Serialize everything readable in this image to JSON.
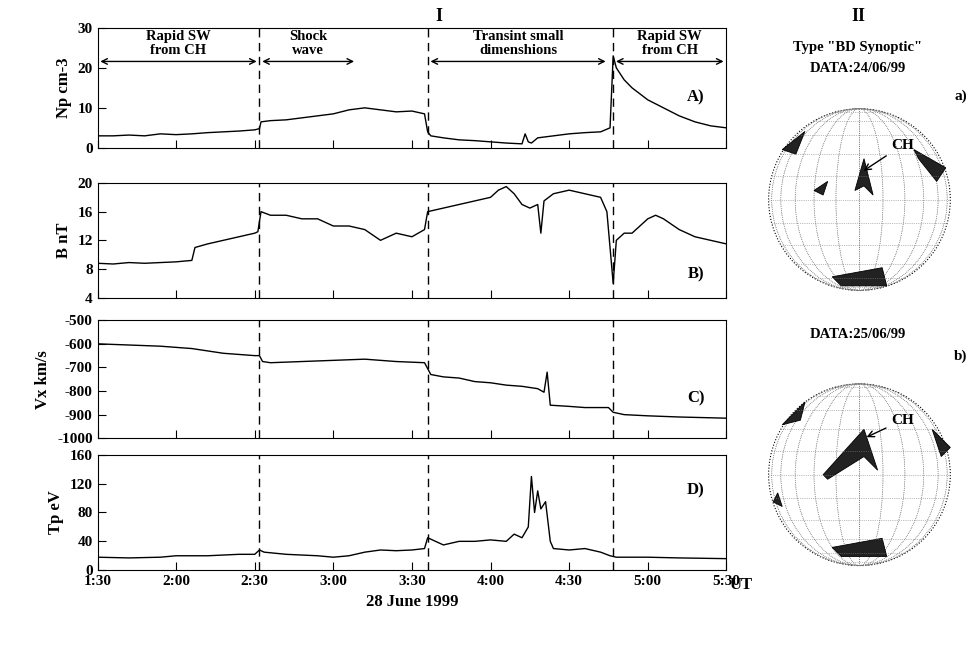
{
  "header": {
    "left": "I",
    "right": "II"
  },
  "boundaries": [
    2.53,
    3.6,
    4.78
  ],
  "chart_data": [
    {
      "type": "line",
      "ylabel": "Np cm-3",
      "panel": "A)",
      "color": "#000000",
      "x": [
        1.5,
        1.6,
        1.7,
        1.8,
        1.9,
        2.0,
        2.1,
        2.2,
        2.3,
        2.4,
        2.5,
        2.53,
        2.54,
        2.6,
        2.7,
        2.8,
        2.9,
        3.0,
        3.1,
        3.2,
        3.3,
        3.4,
        3.5,
        3.58,
        3.6,
        3.62,
        3.7,
        3.8,
        3.9,
        4.0,
        4.1,
        4.2,
        4.22,
        4.24,
        4.26,
        4.3,
        4.4,
        4.5,
        4.6,
        4.7,
        4.76,
        4.78,
        4.8,
        4.85,
        4.9,
        5.0,
        5.1,
        5.2,
        5.3,
        5.4,
        5.5
      ],
      "values": [
        3,
        3,
        3.2,
        3,
        3.5,
        3.3,
        3.5,
        3.8,
        4,
        4.2,
        4.5,
        4.8,
        6.5,
        6.8,
        7,
        7.5,
        8,
        8.5,
        9.5,
        10,
        9.5,
        9,
        9.2,
        8.5,
        4,
        3,
        2.5,
        2,
        1.8,
        1.5,
        1.2,
        1,
        3.5,
        1.5,
        1.2,
        2.5,
        3,
        3.5,
        3.8,
        4,
        5,
        23,
        20,
        17,
        15,
        12,
        10,
        8,
        6.5,
        5.5,
        5
      ],
      "xlim": [
        1.5,
        5.5
      ],
      "xticks": [
        1.5,
        2.0,
        2.5,
        3.0,
        3.5,
        4.0,
        4.5,
        5.0,
        5.5
      ],
      "ylim": [
        0,
        30
      ],
      "yticks": [
        0,
        10,
        20,
        30
      ],
      "tick_labels": "y",
      "annotations": [
        {
          "text": "Rapid SW\nfrom CH",
          "x_start": 1.5,
          "x_end": 2.53
        },
        {
          "text": "Shock\nwave",
          "x_start": 2.53,
          "x_end": 3.15
        },
        {
          "text": "Transint small\ndimenshions",
          "x_start": 3.6,
          "x_end": 4.75
        },
        {
          "text": "Rapid SW\nfrom CH",
          "x_start": 4.78,
          "x_end": 5.5
        }
      ]
    },
    {
      "type": "line",
      "ylabel": "B nT",
      "panel": "B)",
      "color": "#000000",
      "x": [
        1.5,
        1.6,
        1.7,
        1.8,
        1.9,
        2.0,
        2.1,
        2.12,
        2.2,
        2.3,
        2.4,
        2.5,
        2.52,
        2.54,
        2.6,
        2.7,
        2.8,
        2.9,
        3.0,
        3.1,
        3.2,
        3.3,
        3.4,
        3.5,
        3.58,
        3.6,
        3.7,
        3.8,
        3.9,
        4.0,
        4.05,
        4.1,
        4.15,
        4.2,
        4.25,
        4.3,
        4.32,
        4.34,
        4.4,
        4.5,
        4.6,
        4.7,
        4.74,
        4.76,
        4.78,
        4.8,
        4.85,
        4.9,
        5.0,
        5.05,
        5.1,
        5.2,
        5.3,
        5.4,
        5.5
      ],
      "values": [
        8.8,
        8.7,
        8.9,
        8.8,
        8.9,
        9,
        9.2,
        11,
        11.5,
        12,
        12.5,
        13,
        13.2,
        16,
        15.5,
        15.5,
        15,
        15,
        14,
        14,
        13.5,
        12,
        13,
        12.5,
        13.5,
        16,
        16.5,
        17,
        17.5,
        18,
        19,
        19.5,
        18.5,
        17,
        16.5,
        17,
        13,
        17.5,
        18.5,
        19,
        18.5,
        18,
        16,
        11,
        6,
        12,
        13,
        13,
        15,
        15.5,
        15,
        13.5,
        12.5,
        12,
        11.5
      ],
      "xlim": [
        1.5,
        5.5
      ],
      "xticks": [
        1.5,
        2.0,
        2.5,
        3.0,
        3.5,
        4.0,
        4.5,
        5.0,
        5.5
      ],
      "ylim": [
        4,
        20
      ],
      "yticks": [
        4,
        8,
        12,
        16,
        20
      ],
      "tick_labels": "y"
    },
    {
      "type": "line",
      "ylabel": "Vx km/s",
      "panel": "C)",
      "color": "#000000",
      "x": [
        1.5,
        1.7,
        1.9,
        2.0,
        2.1,
        2.2,
        2.3,
        2.4,
        2.5,
        2.53,
        2.55,
        2.6,
        2.8,
        3.0,
        3.2,
        3.4,
        3.58,
        3.62,
        3.7,
        3.8,
        3.9,
        4.0,
        4.1,
        4.2,
        4.3,
        4.34,
        4.36,
        4.38,
        4.5,
        4.6,
        4.7,
        4.75,
        4.78,
        4.85,
        5.0,
        5.2,
        5.5
      ],
      "values": [
        -600,
        -605,
        -610,
        -615,
        -620,
        -630,
        -640,
        -645,
        -650,
        -650,
        -675,
        -680,
        -675,
        -670,
        -665,
        -675,
        -680,
        -730,
        -740,
        -745,
        -760,
        -765,
        -775,
        -780,
        -790,
        -805,
        -720,
        -860,
        -865,
        -870,
        -870,
        -870,
        -890,
        -900,
        -905,
        -910,
        -915
      ],
      "xlim": [
        1.5,
        5.5
      ],
      "xticks": [
        1.5,
        2.0,
        2.5,
        3.0,
        3.5,
        4.0,
        4.5,
        5.0,
        5.5
      ],
      "ylim": [
        -1000,
        -500
      ],
      "yticks": [
        -500,
        -600,
        -700,
        -800,
        -900,
        -1000
      ],
      "tick_labels": "y"
    },
    {
      "type": "line",
      "ylabel": "Tp eV",
      "panel": "D)",
      "color": "#000000",
      "xlabel": "28 June 1999",
      "xunit": "UT",
      "x": [
        1.5,
        1.7,
        1.9,
        2.0,
        2.2,
        2.4,
        2.5,
        2.53,
        2.56,
        2.7,
        2.9,
        3.0,
        3.1,
        3.2,
        3.3,
        3.4,
        3.5,
        3.58,
        3.6,
        3.65,
        3.7,
        3.8,
        3.9,
        4.0,
        4.1,
        4.15,
        4.2,
        4.24,
        4.26,
        4.28,
        4.3,
        4.32,
        4.35,
        4.38,
        4.4,
        4.5,
        4.6,
        4.7,
        4.76,
        4.8,
        5.0,
        5.2,
        5.5
      ],
      "values": [
        18,
        17,
        18,
        20,
        20,
        22,
        22,
        28,
        25,
        22,
        20,
        18,
        20,
        25,
        28,
        27,
        28,
        30,
        45,
        40,
        35,
        40,
        40,
        42,
        40,
        50,
        45,
        60,
        130,
        80,
        110,
        85,
        95,
        40,
        30,
        28,
        30,
        25,
        20,
        18,
        18,
        17,
        16
      ],
      "xlim": [
        1.5,
        5.5
      ],
      "xticks": [
        {
          "value": 1.5,
          "label": "1:30"
        },
        {
          "value": 2.0,
          "label": "2:00"
        },
        {
          "value": 2.5,
          "label": "2:30"
        },
        {
          "value": 3.0,
          "label": "3:00"
        },
        {
          "value": 3.5,
          "label": "3:30"
        },
        {
          "value": 4.0,
          "label": "4:00"
        },
        {
          "value": 4.5,
          "label": "4:30"
        },
        {
          "value": 5.0,
          "label": "5:00"
        },
        {
          "value": 5.5,
          "label": "5:30"
        }
      ],
      "ylim": [
        0,
        160
      ],
      "yticks": [
        0,
        40,
        80,
        120,
        160
      ]
    }
  ],
  "synoptic": {
    "type_label": "Type \"BD Synoptic\"",
    "maps": [
      {
        "date": "DATA:24/06/99",
        "panel": "a)",
        "label": "CH"
      },
      {
        "date": "DATA:25/06/99",
        "panel": "b)",
        "label": "CH"
      }
    ]
  }
}
